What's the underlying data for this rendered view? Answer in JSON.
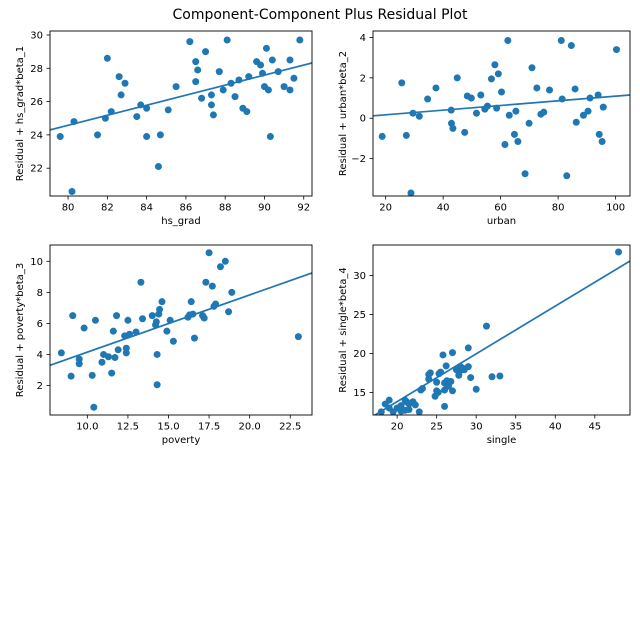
{
  "figure": {
    "title": "Component-Component Plus Residual Plot",
    "background": "#ffffff",
    "accent_color": "#1f77b4",
    "text_color": "#000000"
  },
  "chart_data": [
    {
      "type": "scatter",
      "name": "ccpr-hs_grad",
      "xlabel": "hs_grad",
      "ylabel": "Residual + hs_grad*beta_1",
      "xlim": [
        79.08,
        92.42
      ],
      "ylim": [
        20.33,
        30.24
      ],
      "xticks": [
        80,
        82,
        84,
        86,
        88,
        90,
        92
      ],
      "xtick_labels": [
        "80",
        "82",
        "84",
        "86",
        "88",
        "90",
        "92"
      ],
      "yticks": [
        22,
        24,
        26,
        28,
        30
      ],
      "ytick_labels": [
        "22",
        "24",
        "26",
        "28",
        "30"
      ],
      "grid": false,
      "marker_color": "#1f77b4",
      "line_color": "#1f77b4",
      "trend_line": {
        "x1": 79.08,
        "y1": 24.3,
        "x2": 92.42,
        "y2": 28.32
      },
      "points": [
        [
          79.6,
          23.9
        ],
        [
          80.2,
          20.6
        ],
        [
          80.3,
          24.8
        ],
        [
          81.5,
          24.0
        ],
        [
          81.9,
          25.0
        ],
        [
          82.0,
          28.6
        ],
        [
          82.2,
          25.4
        ],
        [
          82.6,
          27.5
        ],
        [
          82.7,
          26.4
        ],
        [
          82.9,
          27.1
        ],
        [
          83.5,
          25.1
        ],
        [
          83.7,
          25.8
        ],
        [
          84.0,
          25.6
        ],
        [
          84.0,
          23.9
        ],
        [
          84.6,
          22.1
        ],
        [
          84.7,
          24.0
        ],
        [
          85.1,
          25.5
        ],
        [
          85.5,
          26.9
        ],
        [
          86.2,
          29.6
        ],
        [
          86.5,
          28.4
        ],
        [
          86.5,
          27.2
        ],
        [
          86.6,
          27.9
        ],
        [
          86.8,
          26.2
        ],
        [
          87.0,
          29.0
        ],
        [
          87.3,
          26.4
        ],
        [
          87.3,
          25.8
        ],
        [
          87.4,
          25.2
        ],
        [
          87.7,
          27.8
        ],
        [
          87.9,
          26.7
        ],
        [
          88.1,
          29.7
        ],
        [
          88.3,
          27.1
        ],
        [
          88.5,
          26.3
        ],
        [
          88.7,
          27.3
        ],
        [
          88.9,
          25.6
        ],
        [
          89.1,
          25.4
        ],
        [
          89.2,
          27.5
        ],
        [
          89.6,
          28.4
        ],
        [
          89.8,
          28.2
        ],
        [
          89.9,
          27.7
        ],
        [
          90.0,
          26.9
        ],
        [
          90.1,
          29.2
        ],
        [
          90.2,
          26.7
        ],
        [
          90.3,
          23.9
        ],
        [
          90.4,
          28.5
        ],
        [
          90.7,
          27.8
        ],
        [
          91.0,
          26.9
        ],
        [
          91.3,
          28.5
        ],
        [
          91.3,
          26.7
        ],
        [
          91.5,
          27.4
        ],
        [
          91.8,
          29.7
        ]
      ]
    },
    {
      "type": "scatter",
      "name": "ccpr-urban",
      "xlabel": "urban",
      "ylabel": "Residual + urban*beta_2",
      "xlim": [
        15.6,
        105.0
      ],
      "ylim": [
        -3.85,
        4.32
      ],
      "xticks": [
        20,
        40,
        60,
        80,
        100
      ],
      "xtick_labels": [
        "20",
        "40",
        "60",
        "80",
        "100"
      ],
      "yticks": [
        -2,
        0,
        2,
        4
      ],
      "ytick_labels": [
        "−2",
        "0",
        "2",
        "4"
      ],
      "grid": false,
      "marker_color": "#1f77b4",
      "line_color": "#1f77b4",
      "trend_line": {
        "x1": 15.6,
        "y1": 0.12,
        "x2": 105.0,
        "y2": 1.15
      },
      "points": [
        [
          18.8,
          -0.9
        ],
        [
          25.6,
          1.75
        ],
        [
          27.2,
          -0.85
        ],
        [
          28.8,
          -3.7
        ],
        [
          29.5,
          0.25
        ],
        [
          31.7,
          0.1
        ],
        [
          34.6,
          0.95
        ],
        [
          37.5,
          1.5
        ],
        [
          42.8,
          0.4
        ],
        [
          42.9,
          -0.25
        ],
        [
          43.4,
          -0.5
        ],
        [
          44.9,
          2.0
        ],
        [
          47.5,
          -0.7
        ],
        [
          48.4,
          1.1
        ],
        [
          49.8,
          1.0
        ],
        [
          51.6,
          0.25
        ],
        [
          53.1,
          1.15
        ],
        [
          54.5,
          0.45
        ],
        [
          55.4,
          0.6
        ],
        [
          56.8,
          1.95
        ],
        [
          58.0,
          2.65
        ],
        [
          58.6,
          0.5
        ],
        [
          59.2,
          2.2
        ],
        [
          60.3,
          1.3
        ],
        [
          61.5,
          -1.3
        ],
        [
          62.5,
          3.85
        ],
        [
          63.0,
          0.15
        ],
        [
          64.8,
          -0.8
        ],
        [
          65.3,
          0.35
        ],
        [
          66.0,
          -1.15
        ],
        [
          68.5,
          -2.75
        ],
        [
          69.9,
          -0.25
        ],
        [
          70.9,
          2.5
        ],
        [
          72.6,
          1.5
        ],
        [
          74.0,
          0.2
        ],
        [
          75.0,
          0.3
        ],
        [
          77.0,
          1.4
        ],
        [
          81.1,
          3.85
        ],
        [
          81.4,
          0.95
        ],
        [
          83.0,
          -2.85
        ],
        [
          84.6,
          3.6
        ],
        [
          85.9,
          1.45
        ],
        [
          86.3,
          -0.2
        ],
        [
          88.8,
          0.15
        ],
        [
          90.4,
          0.35
        ],
        [
          91.1,
          1.0
        ],
        [
          93.9,
          1.15
        ],
        [
          94.3,
          -0.8
        ],
        [
          95.3,
          -1.15
        ],
        [
          95.7,
          0.55
        ],
        [
          100.3,
          3.4
        ]
      ]
    },
    {
      "type": "scatter",
      "name": "ccpr-poverty",
      "xlabel": "poverty",
      "ylabel": "Residual + poverty*beta_3",
      "xlim": [
        7.7,
        23.84
      ],
      "ylim": [
        0.1,
        11.05
      ],
      "xticks": [
        10.0,
        12.5,
        15.0,
        17.5,
        20.0,
        22.5
      ],
      "xtick_labels": [
        "10.0",
        "12.5",
        "15.0",
        "17.5",
        "20.0",
        "22.5"
      ],
      "yticks": [
        2,
        4,
        6,
        8,
        10
      ],
      "ytick_labels": [
        "2",
        "4",
        "6",
        "8",
        "10"
      ],
      "grid": false,
      "marker_color": "#1f77b4",
      "line_color": "#1f77b4",
      "trend_line": {
        "x1": 7.7,
        "y1": 3.3,
        "x2": 23.84,
        "y2": 9.25
      },
      "points": [
        [
          8.4,
          4.1
        ],
        [
          9.0,
          2.6
        ],
        [
          9.1,
          6.5
        ],
        [
          9.5,
          3.4
        ],
        [
          9.5,
          3.7
        ],
        [
          9.8,
          5.7
        ],
        [
          10.3,
          2.65
        ],
        [
          10.4,
          0.6
        ],
        [
          10.5,
          6.2
        ],
        [
          10.9,
          3.5
        ],
        [
          11.0,
          4.0
        ],
        [
          11.3,
          3.85
        ],
        [
          11.5,
          2.8
        ],
        [
          11.6,
          5.5
        ],
        [
          11.7,
          3.8
        ],
        [
          11.8,
          6.5
        ],
        [
          11.9,
          4.3
        ],
        [
          12.3,
          5.2
        ],
        [
          12.4,
          4.1
        ],
        [
          12.4,
          4.4
        ],
        [
          12.5,
          6.2
        ],
        [
          12.6,
          5.3
        ],
        [
          13.0,
          5.45
        ],
        [
          13.3,
          8.65
        ],
        [
          13.4,
          6.3
        ],
        [
          14.0,
          6.5
        ],
        [
          14.2,
          5.9
        ],
        [
          14.25,
          6.1
        ],
        [
          14.3,
          2.05
        ],
        [
          14.3,
          4.0
        ],
        [
          14.4,
          6.6
        ],
        [
          14.45,
          6.9
        ],
        [
          14.6,
          7.4
        ],
        [
          14.9,
          5.5
        ],
        [
          15.1,
          6.2
        ],
        [
          15.3,
          4.85
        ],
        [
          16.2,
          6.4
        ],
        [
          16.3,
          6.55
        ],
        [
          16.4,
          7.4
        ],
        [
          16.5,
          6.6
        ],
        [
          16.6,
          5.05
        ],
        [
          17.1,
          6.5
        ],
        [
          17.2,
          6.35
        ],
        [
          17.3,
          8.65
        ],
        [
          17.5,
          10.55
        ],
        [
          17.7,
          8.4
        ],
        [
          17.8,
          7.1
        ],
        [
          17.9,
          7.25
        ],
        [
          18.2,
          9.65
        ],
        [
          18.5,
          10.0
        ],
        [
          18.7,
          6.75
        ],
        [
          18.9,
          8.0
        ],
        [
          23.0,
          5.15
        ]
      ]
    },
    {
      "type": "scatter",
      "name": "ccpr-single",
      "xlabel": "single",
      "ylabel": "Residual + single*beta_4",
      "xlim": [
        16.95,
        49.45
      ],
      "ylim": [
        12.1,
        33.9
      ],
      "xticks": [
        20,
        25,
        30,
        35,
        40,
        45
      ],
      "xtick_labels": [
        "20",
        "25",
        "30",
        "35",
        "40",
        "45"
      ],
      "yticks": [
        15,
        20,
        25,
        30
      ],
      "ytick_labels": [
        "15",
        "20",
        "25",
        "30"
      ],
      "grid": false,
      "marker_color": "#1f77b4",
      "line_color": "#1f77b4",
      "trend_line": {
        "x1": 16.95,
        "y1": 11.95,
        "x2": 49.45,
        "y2": 31.85
      },
      "points": [
        [
          18.0,
          12.5
        ],
        [
          18.5,
          13.5
        ],
        [
          19.0,
          13.0
        ],
        [
          19.0,
          14.0
        ],
        [
          19.5,
          12.5
        ],
        [
          20.0,
          13.0
        ],
        [
          20.5,
          12.6
        ],
        [
          20.5,
          13.3
        ],
        [
          21.0,
          12.7
        ],
        [
          21.0,
          14.0
        ],
        [
          21.2,
          13.8
        ],
        [
          21.5,
          13.5
        ],
        [
          21.5,
          12.8
        ],
        [
          22.0,
          13.8
        ],
        [
          22.3,
          13.4
        ],
        [
          22.8,
          12.5
        ],
        [
          23.0,
          15.3
        ],
        [
          23.2,
          15.5
        ],
        [
          24.0,
          17.3
        ],
        [
          24.0,
          16.7
        ],
        [
          24.2,
          17.5
        ],
        [
          24.8,
          14.5
        ],
        [
          25.0,
          15.2
        ],
        [
          25.0,
          16.3
        ],
        [
          25.2,
          15.0
        ],
        [
          25.3,
          17.4
        ],
        [
          25.5,
          17.6
        ],
        [
          25.8,
          19.8
        ],
        [
          26.0,
          15.3
        ],
        [
          26.0,
          16.2
        ],
        [
          26.0,
          13.2
        ],
        [
          26.2,
          18.4
        ],
        [
          26.3,
          16.5
        ],
        [
          26.5,
          15.8
        ],
        [
          26.8,
          16.4
        ],
        [
          27.0,
          20.1
        ],
        [
          27.0,
          15.2
        ],
        [
          27.5,
          17.9
        ],
        [
          27.8,
          17.2
        ],
        [
          28.0,
          18.3
        ],
        [
          28.0,
          17.8
        ],
        [
          28.3,
          18.1
        ],
        [
          28.5,
          17.9
        ],
        [
          29.0,
          20.7
        ],
        [
          29.0,
          18.3
        ],
        [
          29.3,
          16.9
        ],
        [
          30.0,
          15.4
        ],
        [
          31.3,
          23.5
        ],
        [
          32.0,
          17.0
        ],
        [
          33.0,
          17.1
        ],
        [
          48.0,
          33.0
        ]
      ]
    }
  ]
}
